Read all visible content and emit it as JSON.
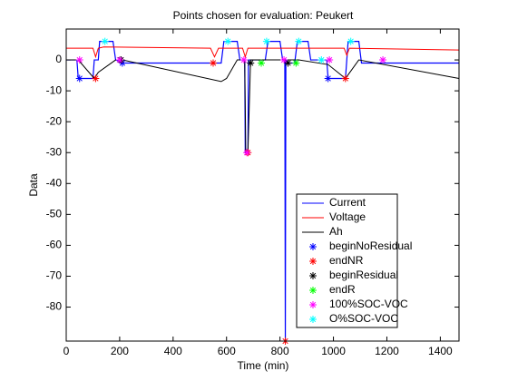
{
  "chart_data": {
    "type": "line",
    "title": "Points chosen for evaluation: Peukert",
    "xlabel": "Time (min)",
    "ylabel": "Data",
    "xlim": [
      0,
      1470
    ],
    "ylim": [
      -91,
      10
    ],
    "xticks": [
      0,
      200,
      400,
      600,
      800,
      1000,
      1200,
      1400
    ],
    "yticks": [
      -80,
      -70,
      -60,
      -50,
      -40,
      -30,
      -20,
      -10,
      0
    ],
    "legend": "lower right",
    "series": [
      {
        "name": "Current",
        "color": "#0000ff",
        "style": "line",
        "x": [
          0,
          40,
          45,
          100,
          105,
          120,
          125,
          175,
          185,
          215,
          580,
          590,
          640,
          650,
          668,
          670,
          680,
          682,
          745,
          755,
          800,
          810,
          818,
          820,
          822,
          830,
          855,
          865,
          905,
          915,
          975,
          980,
          1045,
          1055,
          1095,
          1105,
          1470
        ],
        "values": [
          0,
          0,
          -6,
          -6,
          0,
          0,
          6,
          6,
          0,
          -1,
          -1,
          6,
          6,
          0,
          0,
          -30,
          -30,
          0,
          0,
          6,
          6,
          0,
          0,
          -91,
          0,
          -1,
          -1,
          6,
          6,
          0,
          0,
          -6,
          -6,
          6,
          6,
          -1,
          -1
        ]
      },
      {
        "name": "Voltage",
        "color": "#ff0000",
        "style": "line",
        "x": [
          0,
          100,
          110,
          120,
          140,
          540,
          555,
          570,
          660,
          670,
          680,
          1040,
          1050,
          1060,
          1470
        ],
        "values": [
          3.8,
          3.8,
          1,
          3.8,
          4.2,
          3.8,
          1,
          3.8,
          3.8,
          1,
          3.8,
          3.8,
          1.5,
          3.8,
          3.2
        ]
      },
      {
        "name": "Ah",
        "color": "#000000",
        "style": "line",
        "x": [
          0,
          45,
          105,
          120,
          185,
          210,
          580,
          600,
          640,
          668,
          672,
          680,
          690,
          810,
          870,
          980,
          1045,
          1095,
          1470
        ],
        "values": [
          0,
          0,
          -6,
          -4,
          0,
          0,
          -7,
          -6,
          0,
          0,
          -30,
          -30,
          0,
          0,
          0,
          -1.5,
          -6,
          0,
          -6
        ]
      },
      {
        "name": "beginNoResidual",
        "color": "#0000ff",
        "style": "marker",
        "x": [
          50,
          210,
          980
        ],
        "values": [
          -6,
          -1,
          -6
        ]
      },
      {
        "name": "endNR",
        "color": "#ff0000",
        "style": "marker",
        "x": [
          110,
          550,
          680,
          820,
          1045
        ],
        "values": [
          -6,
          -1,
          -30,
          -91,
          -6
        ]
      },
      {
        "name": "beginResidual",
        "color": "#000000",
        "style": "marker",
        "x": [
          205,
          690,
          830
        ],
        "values": [
          0,
          -1,
          -1
        ]
      },
      {
        "name": "endR",
        "color": "#00ff00",
        "style": "marker",
        "x": [
          730,
          860
        ],
        "values": [
          -1,
          -1
        ]
      },
      {
        "name": "100%SOC-VOC",
        "color": "#ff00ff",
        "style": "marker",
        "x": [
          50,
          200,
          665,
          676,
          815,
          985,
          1185
        ],
        "values": [
          0,
          0,
          0,
          -30,
          0,
          0,
          0
        ]
      },
      {
        "name": "O%SOC-VOC",
        "color": "#00ffff",
        "style": "marker",
        "x": [
          145,
          605,
          750,
          870,
          955,
          1065
        ],
        "values": [
          6,
          6,
          6,
          6,
          0,
          6
        ]
      }
    ]
  }
}
